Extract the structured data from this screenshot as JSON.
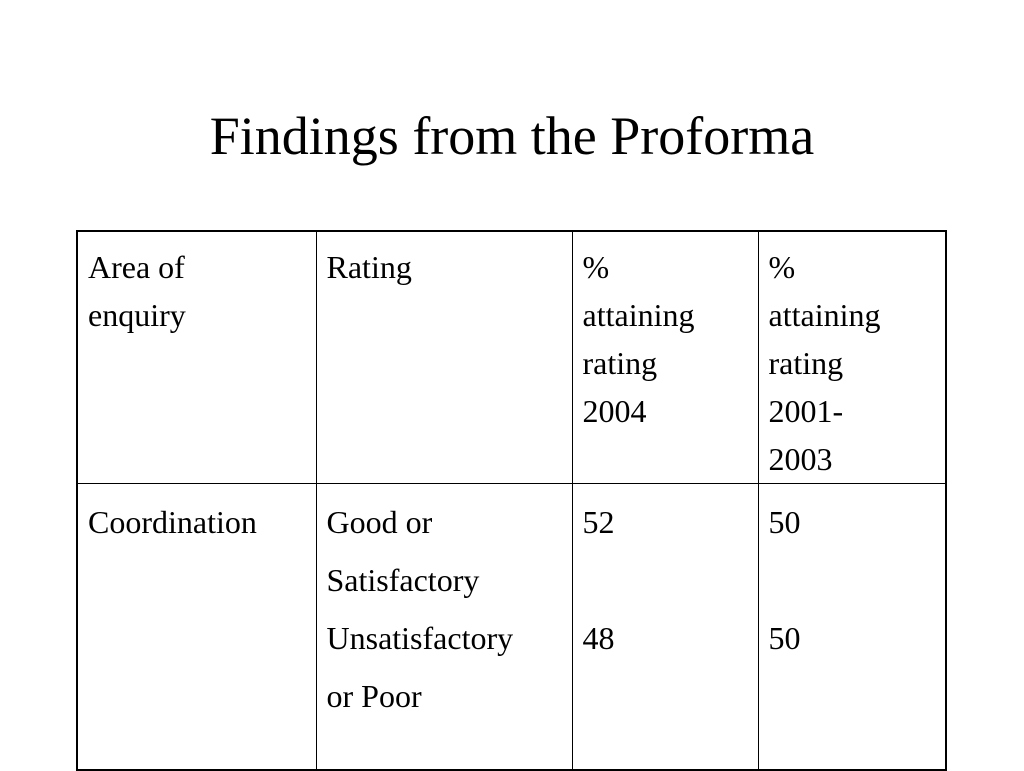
{
  "slide": {
    "title": "Findings from the Proforma"
  },
  "table": {
    "headers": {
      "area": [
        "Area of",
        "enquiry"
      ],
      "rating": "Rating",
      "pct_2004": [
        "%",
        "attaining",
        "rating",
        "2004"
      ],
      "pct_2001_2003": [
        "%",
        "attaining",
        "rating",
        "2001-",
        "2003"
      ]
    },
    "rows": [
      {
        "area": "Coordination",
        "rating_lines": [
          "Good or",
          "Satisfactory",
          "Unsatisfactory",
          "or Poor"
        ],
        "pct_2004": [
          "52",
          "48"
        ],
        "pct_2001_2003": [
          "50",
          "50"
        ]
      }
    ]
  }
}
